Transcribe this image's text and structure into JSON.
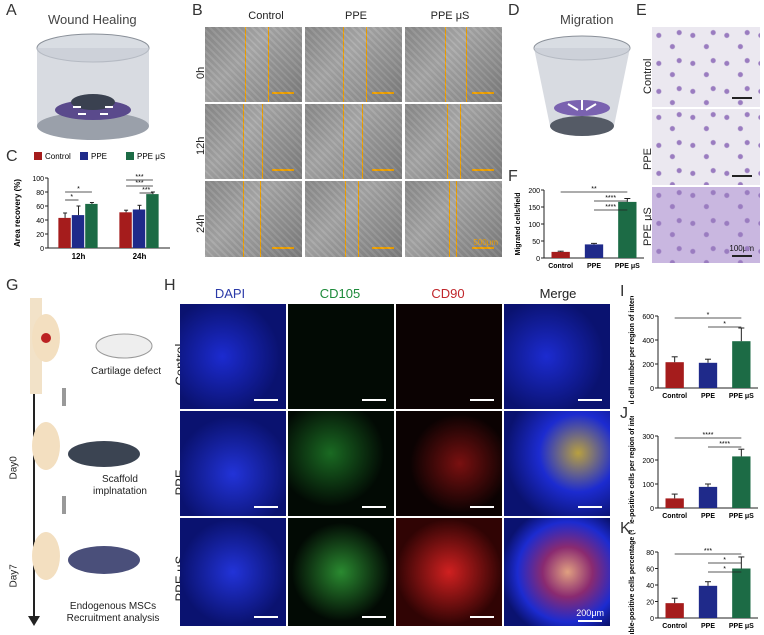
{
  "panels": {
    "A": {
      "letter": "A",
      "title": "Wound Healing"
    },
    "B": {
      "letter": "B",
      "columns": [
        "Control",
        "PPE",
        "PPE μS"
      ],
      "rows": [
        "0h",
        "12h",
        "24h"
      ],
      "scale": "500μm"
    },
    "C": {
      "letter": "C"
    },
    "D": {
      "letter": "D",
      "title": "Migration"
    },
    "E": {
      "letter": "E",
      "rows": [
        "Control",
        "PPE",
        "PPE μS"
      ],
      "scale": "100μm"
    },
    "F": {
      "letter": "F"
    },
    "G": {
      "letter": "G",
      "steps": [
        "Cartilage defect",
        "Scaffold implnatation",
        "Endogenous MSCs Recruitment analysis"
      ],
      "days": [
        "Day0",
        "Day7"
      ]
    },
    "H": {
      "letter": "H",
      "columns": [
        "DAPI",
        "CD105",
        "CD90",
        "Merge"
      ],
      "rows": [
        "Control",
        "PPE",
        "PPE μS"
      ],
      "scale": "200μm",
      "colors": {
        "DAPI": "#2b3aa8",
        "CD105": "#1d8a3a",
        "CD90": "#c0262b",
        "Merge": "#222222"
      }
    },
    "I": {
      "letter": "I"
    },
    "J": {
      "letter": "J"
    },
    "K": {
      "letter": "K"
    }
  },
  "colors": {
    "control": "#a51c1c",
    "ppe": "#1f2a8a",
    "ppe_us": "#1c6b45"
  },
  "chart_data": [
    {
      "id": "C",
      "type": "bar",
      "legend": [
        "Control",
        "PPE",
        "PPE μS"
      ],
      "categories": [
        "12h",
        "24h"
      ],
      "series": [
        {
          "name": "Control",
          "values": [
            43,
            51
          ],
          "err": [
            7,
            3
          ]
        },
        {
          "name": "PPE",
          "values": [
            47,
            55
          ],
          "err": [
            13,
            6
          ]
        },
        {
          "name": "PPE μS",
          "values": [
            63,
            77
          ],
          "err": [
            2,
            3
          ]
        }
      ],
      "ylabel": "Area recovery (%)",
      "ylim": [
        0,
        100
      ],
      "yticks": [
        0,
        20,
        40,
        60,
        80,
        100
      ],
      "sig": [
        "*",
        "*",
        "***",
        "***",
        "***"
      ]
    },
    {
      "id": "F",
      "type": "bar",
      "categories": [
        "Control",
        "PPE",
        "PPE μS"
      ],
      "values": [
        18,
        40,
        165
      ],
      "err": [
        2,
        3,
        10
      ],
      "ylabel": "Migrated cells/field",
      "ylim": [
        0,
        200
      ],
      "yticks": [
        0,
        50,
        100,
        150,
        200
      ],
      "sig": [
        "**",
        "****",
        "****"
      ]
    },
    {
      "id": "I",
      "type": "bar",
      "categories": [
        "Control",
        "PPE",
        "PPE μS"
      ],
      "values": [
        215,
        210,
        390
      ],
      "err": [
        45,
        30,
        110
      ],
      "ylabel": "Total cell number per region of interest",
      "ylim": [
        0,
        600
      ],
      "yticks": [
        0,
        200,
        400,
        600
      ],
      "sig": [
        "*",
        "*"
      ]
    },
    {
      "id": "J",
      "type": "bar",
      "categories": [
        "Control",
        "PPE",
        "PPE μS"
      ],
      "values": [
        40,
        88,
        215
      ],
      "err": [
        18,
        12,
        30
      ],
      "ylabel": "Double-positive cells per region of interest",
      "ylim": [
        0,
        300
      ],
      "yticks": [
        0,
        100,
        200,
        300
      ],
      "sig": [
        "****",
        "****"
      ]
    },
    {
      "id": "K",
      "type": "bar",
      "categories": [
        "Control",
        "PPE",
        "PPE μS"
      ],
      "values": [
        18,
        39,
        60
      ],
      "err": [
        6,
        5,
        14
      ],
      "ylabel": "Double-positive cells percentage (%)",
      "ylim": [
        0,
        80
      ],
      "yticks": [
        0,
        20,
        40,
        60,
        80
      ],
      "sig": [
        "***",
        "*",
        "*"
      ]
    }
  ]
}
